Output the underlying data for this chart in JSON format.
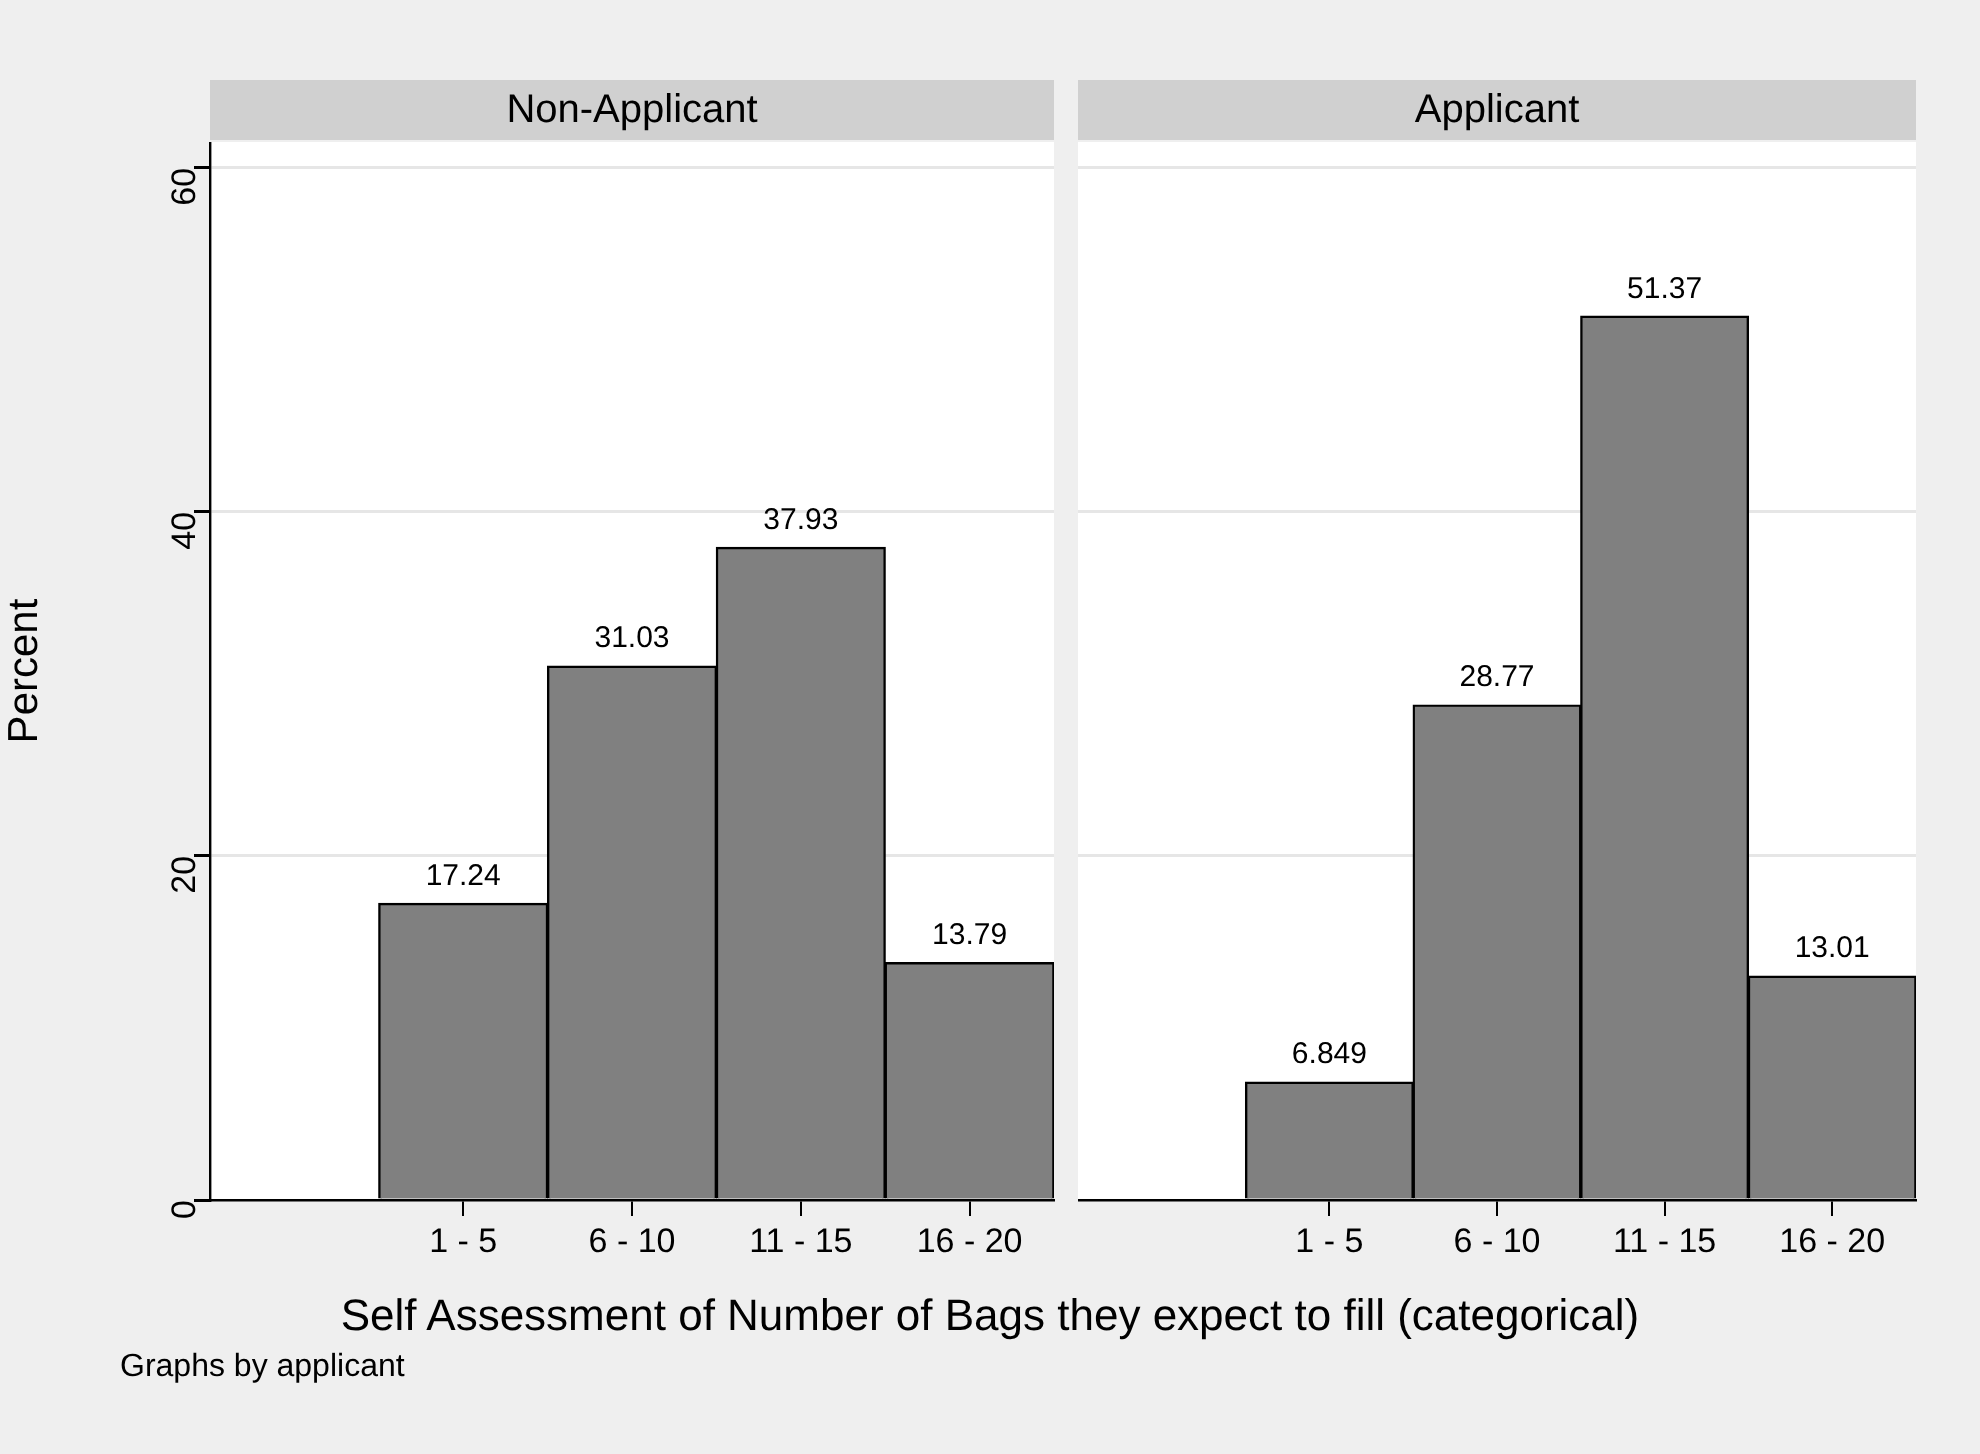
{
  "chart_data": [
    {
      "type": "bar",
      "title": "Non-Applicant",
      "ylabel": "Percent",
      "xlabel": "Self Assessment of Number of Bags they expect to fill (categorical)",
      "annotations": [
        "Graphs by applicant"
      ],
      "categories": [
        null,
        "1 - 5",
        "6 - 10",
        "11 - 15",
        "16 - 20"
      ],
      "values": [
        null,
        17.24,
        31.03,
        37.93,
        13.79
      ],
      "color": "#808080",
      "ylim": [
        0,
        61.5
      ],
      "yticks": [
        0,
        20,
        40,
        60
      ],
      "grid": "y",
      "data_labels": true
    },
    {
      "type": "bar",
      "title": "Applicant",
      "categories": [
        null,
        "1 - 5",
        "6 - 10",
        "11 - 15",
        "16 - 20"
      ],
      "values": [
        null,
        6.849,
        28.77,
        51.37,
        13.01
      ],
      "color": "#808080",
      "ylim": [
        0,
        61.5
      ],
      "yticks": [
        0,
        20,
        40,
        60
      ],
      "grid": "y",
      "data_labels": true,
      "tick_labels": "x"
    }
  ]
}
